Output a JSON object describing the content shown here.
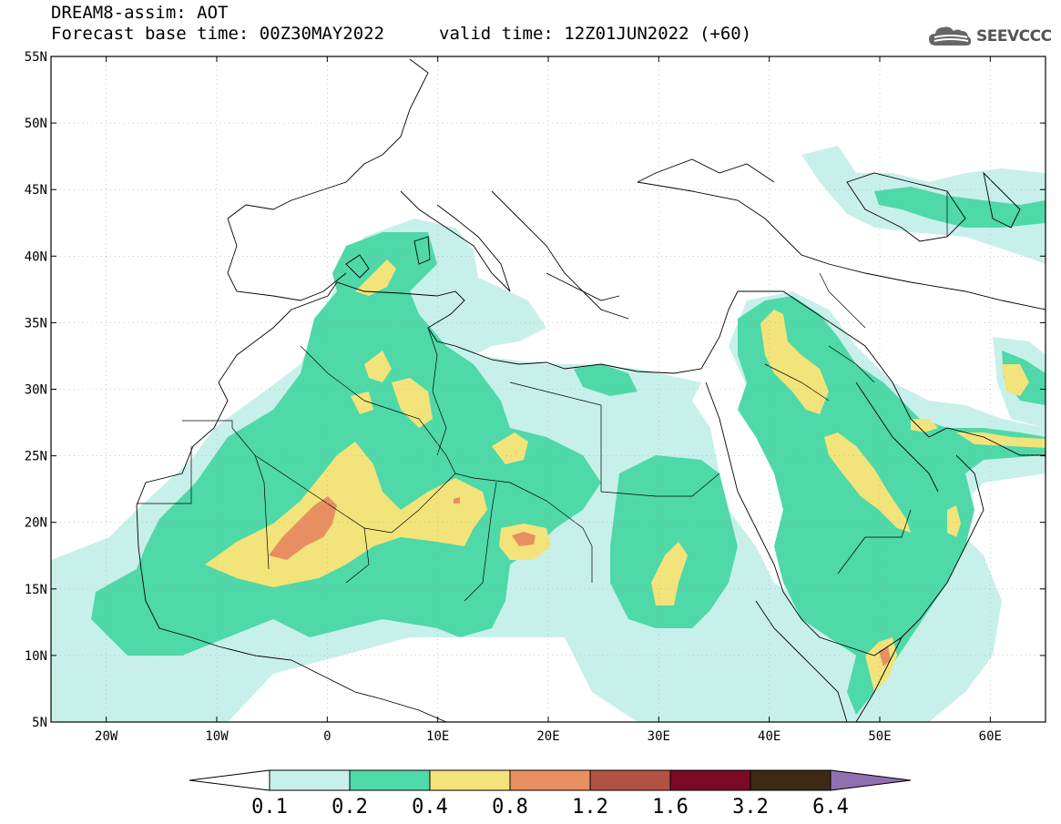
{
  "header": {
    "title": "DREAM8-assim: AOT",
    "base_time": "Forecast base time: 00Z30MAY2022",
    "valid_time": "valid time: 12Z01JUN2022 (+60)",
    "logo_text": "SEEVCCC"
  },
  "map": {
    "lat_labels": [
      "55N",
      "50N",
      "45N",
      "40N",
      "35N",
      "30N",
      "25N",
      "20N",
      "15N",
      "10N",
      "5N"
    ],
    "lon_labels": [
      "20W",
      "10W",
      "0",
      "10E",
      "20E",
      "30E",
      "40E",
      "50E",
      "60E"
    ],
    "lat_range": [
      5,
      55
    ],
    "lon_range": [
      -25,
      65
    ]
  },
  "colorbar": {
    "levels": [
      "0.1",
      "0.2",
      "0.4",
      "0.8",
      "1.2",
      "1.6",
      "3.2",
      "6.4"
    ],
    "colors": [
      "#c8f0ea",
      "#4fd8a8",
      "#f2e47a",
      "#e88f62",
      "#b25241",
      "#7a0a26",
      "#3d2a16",
      "#9070b0"
    ]
  }
}
